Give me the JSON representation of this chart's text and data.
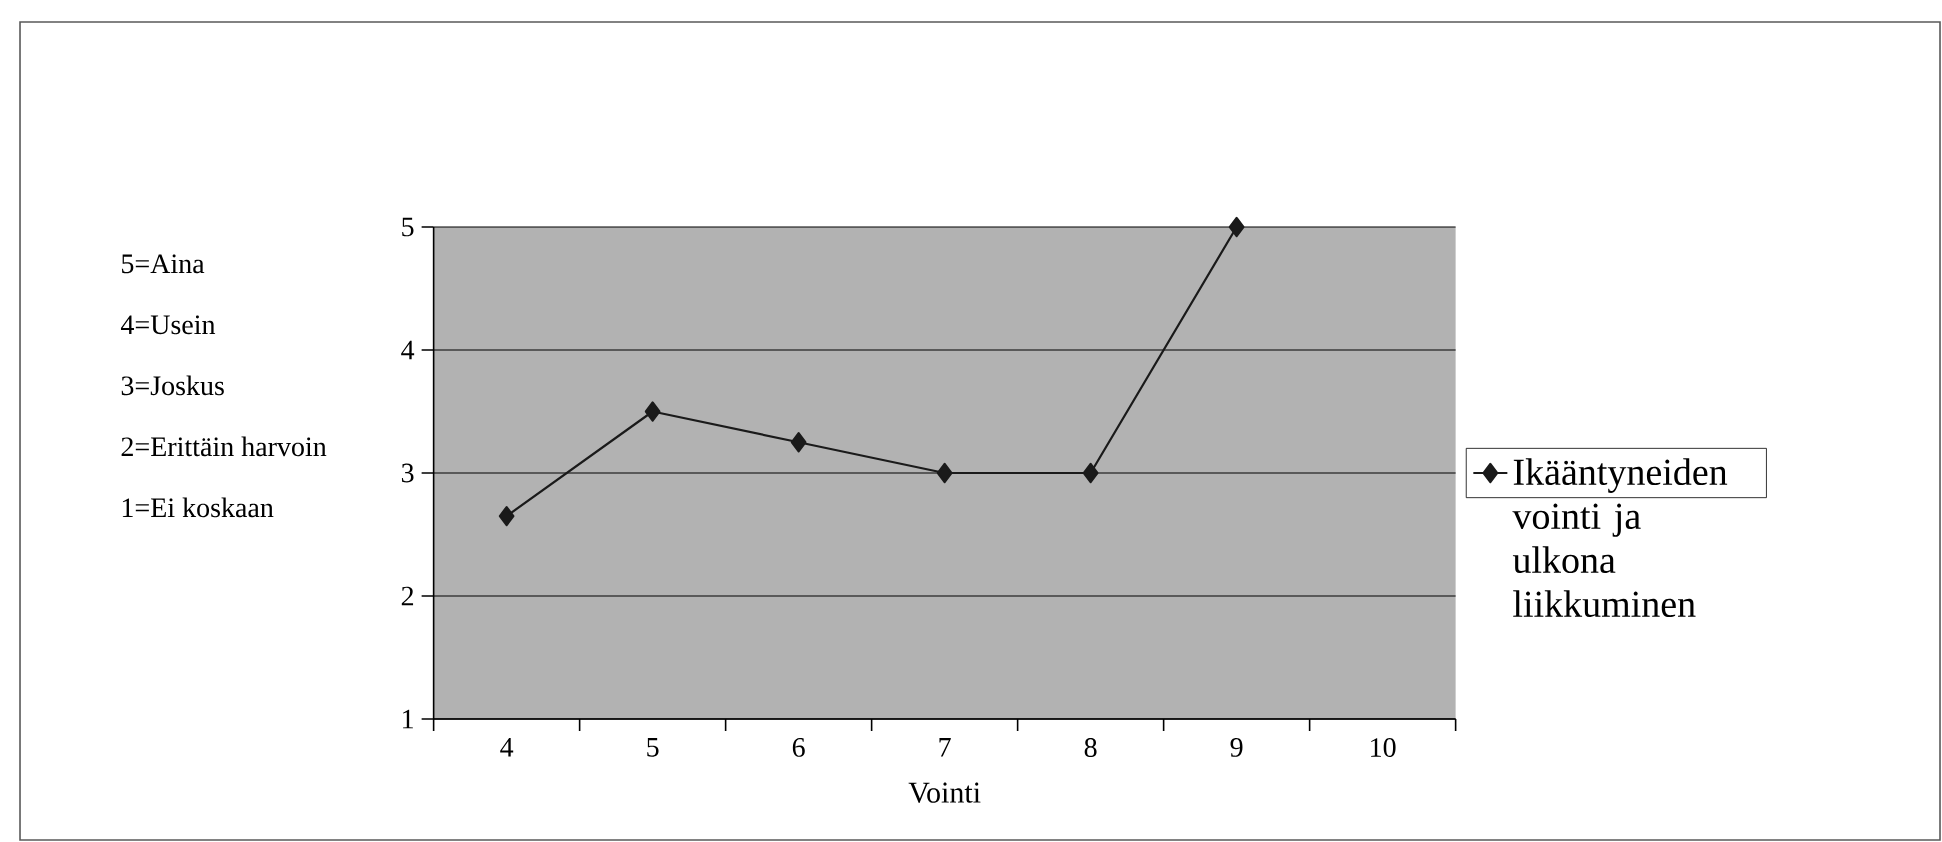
{
  "chart_data": {
    "type": "line",
    "xlabel": "Vointi",
    "categories": [
      "4",
      "5",
      "6",
      "7",
      "8",
      "9",
      "10"
    ],
    "series": [
      {
        "name": "Ikääntyneiden vointi ja ulkona liikkuminen",
        "color": "#1a1a1a",
        "values": [
          2.65,
          3.5,
          3.25,
          3,
          3,
          5,
          null
        ]
      }
    ],
    "ylim": [
      1,
      5
    ],
    "yticks": [
      1,
      2,
      3,
      4,
      5
    ],
    "grid": "y",
    "legend": "right",
    "marker": "diamond",
    "line_style": "solid",
    "annotations": [
      "5=Aina",
      "4=Usein",
      "3=Joskus",
      "2=Erittäin harvoin",
      "1=Ei koskaan"
    ]
  }
}
